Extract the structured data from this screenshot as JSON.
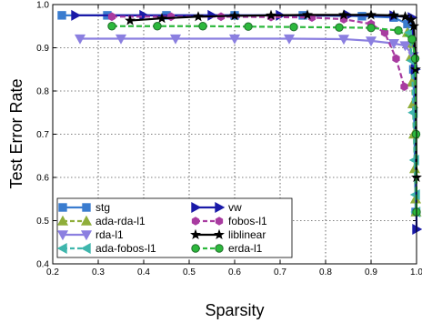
{
  "chart_data": {
    "type": "line",
    "title": "",
    "xlabel": "Sparsity",
    "ylabel": "Test Error Rate",
    "xlim": [
      0.2,
      1.0
    ],
    "ylim": [
      0.4,
      1.0
    ],
    "xticks": [
      0.2,
      0.3,
      0.4,
      0.5,
      0.6,
      0.7,
      0.8,
      0.9,
      1.0
    ],
    "yticks": [
      0.4,
      0.5,
      0.6,
      0.7,
      0.8,
      0.9,
      1.0
    ],
    "xtick_labels": [
      "0.2",
      "0.3",
      "0.4",
      "0.5",
      "0.6",
      "0.7",
      "0.8",
      "0.9",
      "1.0"
    ],
    "ytick_labels": [
      "0.4",
      "0.5",
      "0.6",
      "0.7",
      "0.8",
      "0.9",
      "1.0"
    ],
    "grid": true,
    "legend_position": "bottom-left",
    "series": [
      {
        "name": "stg",
        "color": "#3a7ccf",
        "line": "solid",
        "marker": "square",
        "x": [
          0.22,
          0.32,
          0.45,
          0.6,
          0.75,
          0.88,
          0.95,
          0.98,
          0.993,
          0.998
        ],
        "y": [
          0.975,
          0.975,
          0.975,
          0.975,
          0.975,
          0.973,
          0.97,
          0.955,
          0.85,
          0.52
        ]
      },
      {
        "name": "ada-rda-l1",
        "color": "#8fae3a",
        "line": "dashed",
        "marker": "triangle-up",
        "x": [
          0.98,
          0.985,
          0.988,
          0.99,
          0.992,
          0.994,
          0.996,
          0.998,
          0.999
        ],
        "y": [
          0.935,
          0.91,
          0.88,
          0.82,
          0.77,
          0.7,
          0.62,
          0.55,
          0.52
        ]
      },
      {
        "name": "rda-l1",
        "color": "#8b7fe0",
        "line": "solid",
        "marker": "triangle-down",
        "x": [
          0.26,
          0.35,
          0.47,
          0.6,
          0.72,
          0.84,
          0.9,
          0.95,
          0.975,
          0.993
        ],
        "y": [
          0.921,
          0.921,
          0.921,
          0.921,
          0.921,
          0.92,
          0.916,
          0.91,
          0.905,
          0.88
        ]
      },
      {
        "name": "ada-fobos-l1",
        "color": "#3fb6ad",
        "line": "dashed",
        "marker": "triangle-left",
        "x": [
          0.985,
          0.99,
          0.993,
          0.996,
          0.998,
          0.999
        ],
        "y": [
          0.935,
          0.87,
          0.75,
          0.64,
          0.56,
          0.52
        ]
      },
      {
        "name": "vw",
        "color": "#1a1aa8",
        "line": "solid",
        "marker": "triangle-right",
        "x": [
          0.25,
          0.4,
          0.55,
          0.7,
          0.85,
          0.95,
          0.99,
          0.997,
          1.0
        ],
        "y": [
          0.975,
          0.975,
          0.975,
          0.975,
          0.975,
          0.974,
          0.97,
          0.85,
          0.48
        ]
      },
      {
        "name": "fobos-l1",
        "color": "#a83ba0",
        "line": "dashed",
        "marker": "hexagon",
        "x": [
          0.33,
          0.46,
          0.57,
          0.68,
          0.77,
          0.84,
          0.9,
          0.93,
          0.955,
          0.973
        ],
        "y": [
          0.972,
          0.972,
          0.972,
          0.971,
          0.97,
          0.966,
          0.955,
          0.935,
          0.875,
          0.81
        ]
      },
      {
        "name": "liblinear",
        "color": "#000000",
        "line": "solid",
        "marker": "star",
        "x": [
          0.37,
          0.44,
          0.52,
          0.6,
          0.68,
          0.76,
          0.84,
          0.9,
          0.95,
          0.975,
          0.988,
          0.994,
          0.998,
          1.0
        ],
        "y": [
          0.963,
          0.968,
          0.972,
          0.974,
          0.975,
          0.976,
          0.976,
          0.976,
          0.975,
          0.972,
          0.965,
          0.95,
          0.85,
          0.6
        ]
      },
      {
        "name": "erda-l1",
        "color": "#2db83d",
        "line": "dashed",
        "marker": "circle",
        "x": [
          0.33,
          0.43,
          0.53,
          0.63,
          0.73,
          0.83,
          0.9,
          0.96,
          0.99,
          0.997,
          0.999,
          1.0
        ],
        "y": [
          0.95,
          0.95,
          0.95,
          0.949,
          0.948,
          0.947,
          0.946,
          0.94,
          0.92,
          0.875,
          0.7,
          0.52
        ]
      }
    ]
  }
}
